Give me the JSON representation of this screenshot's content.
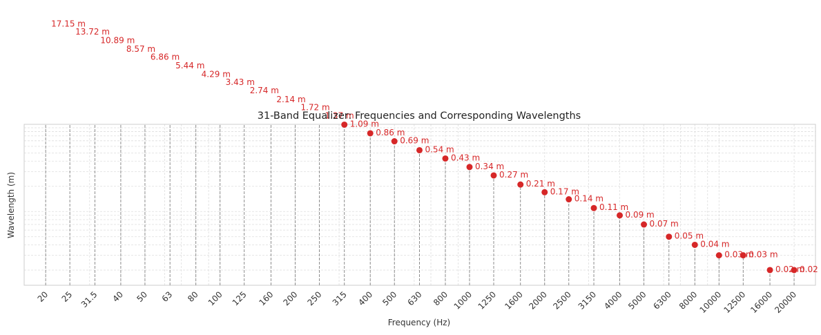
{
  "chart_data": {
    "type": "scatter",
    "title": "31-Band Equalizer: Frequencies and Corresponding Wavelengths",
    "xlabel": "Frequency (Hz)",
    "ylabel": "Wavelength (m)",
    "x_scale": "log",
    "y_scale": "log",
    "grid": true,
    "legend": "none",
    "marker_color": "#d62728",
    "stem_color": "#808080",
    "x_tick_labels": [
      "20",
      "25",
      "31.5",
      "40",
      "50",
      "63",
      "80",
      "100",
      "125",
      "160",
      "200",
      "250",
      "315",
      "400",
      "500",
      "630",
      "800",
      "1000",
      "1250",
      "1600",
      "2000",
      "2500",
      "3150",
      "4000",
      "5000",
      "6300",
      "8000",
      "10000",
      "12500",
      "16000",
      "20000"
    ],
    "x": [
      20,
      25,
      31.5,
      40,
      50,
      63,
      80,
      100,
      125,
      160,
      200,
      250,
      315,
      400,
      500,
      630,
      800,
      1000,
      1250,
      1600,
      2000,
      2500,
      3150,
      4000,
      5000,
      6300,
      8000,
      10000,
      12500,
      16000,
      20000
    ],
    "y": [
      17.15,
      13.72,
      10.89,
      8.57,
      6.86,
      5.44,
      4.29,
      3.43,
      2.74,
      2.14,
      1.72,
      1.37,
      1.09,
      0.86,
      0.69,
      0.54,
      0.43,
      0.34,
      0.27,
      0.21,
      0.17,
      0.14,
      0.11,
      0.09,
      0.07,
      0.05,
      0.04,
      0.03,
      0.03,
      0.02,
      0.02
    ],
    "labels": [
      "17.15 m",
      "13.72 m",
      "10.89 m",
      "8.57 m",
      "6.86 m",
      "5.44 m",
      "4.29 m",
      "3.43 m",
      "2.74 m",
      "2.14 m",
      "1.72 m",
      "1.37 m",
      "1.09 m",
      "0.86 m",
      "0.69 m",
      "0.54 m",
      "0.43 m",
      "0.34 m",
      "0.27 m",
      "0.21 m",
      "0.17 m",
      "0.14 m",
      "0.11 m",
      "0.09 m",
      "0.07 m",
      "0.05 m",
      "0.04 m",
      "0.03 m",
      "0.03 m",
      "0.02 m",
      "0.02 m"
    ]
  }
}
